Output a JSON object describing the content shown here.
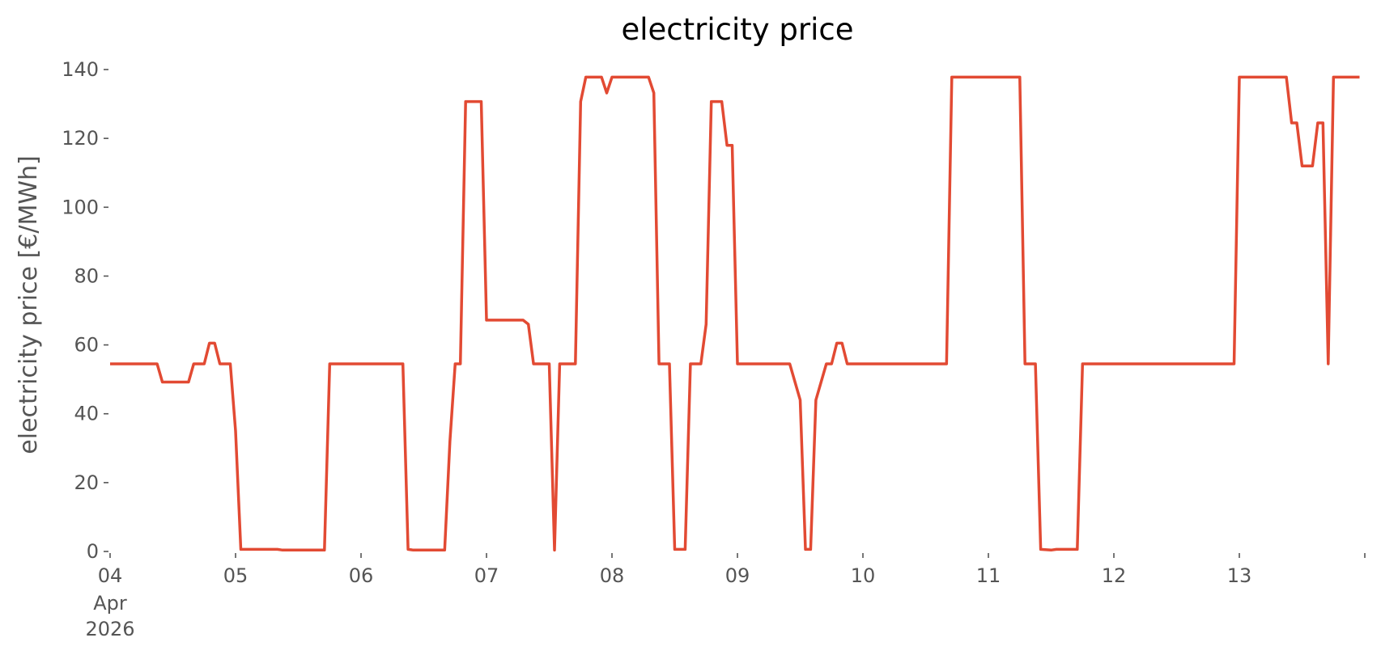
{
  "chart_data": {
    "type": "line",
    "title": "electricity price",
    "xlabel": "",
    "ylabel": "electricity price [€/MWh]",
    "ylim": [
      0,
      140
    ],
    "xlim": [
      "2026-04-04T00:00",
      "2026-04-13T23:00"
    ],
    "yticks": [
      0,
      20,
      40,
      60,
      80,
      100,
      120,
      140
    ],
    "xticks": [
      {
        "value": "2026-04-04",
        "label": "04",
        "sublabels": [
          "Apr",
          "2026"
        ]
      },
      {
        "value": "2026-04-05",
        "label": "05"
      },
      {
        "value": "2026-04-06",
        "label": "06"
      },
      {
        "value": "2026-04-07",
        "label": "07"
      },
      {
        "value": "2026-04-08",
        "label": "08"
      },
      {
        "value": "2026-04-09",
        "label": "09"
      },
      {
        "value": "2026-04-10",
        "label": "10"
      },
      {
        "value": "2026-04-11",
        "label": "11"
      },
      {
        "value": "2026-04-12",
        "label": "12"
      },
      {
        "value": "2026-04-13",
        "label": "13"
      },
      {
        "value": "2026-04-14",
        "label": ""
      }
    ],
    "grid": false,
    "legend": "none",
    "color": "#e24a33",
    "series": [
      {
        "points": [
          [
            "2026-04-04T00:00",
            54.5
          ],
          [
            "2026-04-04T09:00",
            54.5
          ],
          [
            "2026-04-04T10:00",
            49.2
          ],
          [
            "2026-04-04T15:00",
            49.2
          ],
          [
            "2026-04-04T16:00",
            54.5
          ],
          [
            "2026-04-04T18:00",
            54.5
          ],
          [
            "2026-04-04T19:00",
            60.5
          ],
          [
            "2026-04-04T20:00",
            60.5
          ],
          [
            "2026-04-04T21:00",
            54.5
          ],
          [
            "2026-04-04T23:00",
            54.5
          ],
          [
            "2026-04-05T00:00",
            35
          ],
          [
            "2026-04-05T01:00",
            0.6
          ],
          [
            "2026-04-05T08:00",
            0.6
          ],
          [
            "2026-04-05T09:00",
            0.4
          ],
          [
            "2026-04-05T17:00",
            0.4
          ],
          [
            "2026-04-05T18:00",
            54.5
          ],
          [
            "2026-04-06T08:00",
            54.5
          ],
          [
            "2026-04-06T09:00",
            0.6
          ],
          [
            "2026-04-06T10:00",
            0.4
          ],
          [
            "2026-04-06T16:00",
            0.4
          ],
          [
            "2026-04-06T17:00",
            32
          ],
          [
            "2026-04-06T18:00",
            54.5
          ],
          [
            "2026-04-06T19:00",
            54.5
          ],
          [
            "2026-04-06T20:00",
            130.7
          ],
          [
            "2026-04-06T23:00",
            130.7
          ],
          [
            "2026-04-07T00:00",
            67.2
          ],
          [
            "2026-04-07T07:00",
            67.2
          ],
          [
            "2026-04-07T08:00",
            66
          ],
          [
            "2026-04-07T09:00",
            54.5
          ],
          [
            "2026-04-07T12:00",
            54.5
          ],
          [
            "2026-04-07T13:00",
            0.4
          ],
          [
            "2026-04-07T14:00",
            54.5
          ],
          [
            "2026-04-07T17:00",
            54.5
          ],
          [
            "2026-04-07T18:00",
            130.7
          ],
          [
            "2026-04-07T19:00",
            137.8
          ],
          [
            "2026-04-07T22:00",
            137.8
          ],
          [
            "2026-04-07T23:00",
            133.2
          ],
          [
            "2026-04-08T00:00",
            137.8
          ],
          [
            "2026-04-08T07:00",
            137.8
          ],
          [
            "2026-04-08T08:00",
            133.2
          ],
          [
            "2026-04-08T09:00",
            54.5
          ],
          [
            "2026-04-08T11:00",
            54.5
          ],
          [
            "2026-04-08T12:00",
            0.6
          ],
          [
            "2026-04-08T14:00",
            0.6
          ],
          [
            "2026-04-08T15:00",
            54.5
          ],
          [
            "2026-04-08T17:00",
            54.5
          ],
          [
            "2026-04-08T18:00",
            66
          ],
          [
            "2026-04-08T19:00",
            130.7
          ],
          [
            "2026-04-08T21:00",
            130.7
          ],
          [
            "2026-04-08T22:00",
            118
          ],
          [
            "2026-04-08T23:00",
            118
          ],
          [
            "2026-04-09T00:00",
            54.5
          ],
          [
            "2026-04-09T10:00",
            54.5
          ],
          [
            "2026-04-09T12:00",
            44
          ],
          [
            "2026-04-09T13:00",
            0.6
          ],
          [
            "2026-04-09T14:00",
            0.6
          ],
          [
            "2026-04-09T15:00",
            44
          ],
          [
            "2026-04-09T17:00",
            54.5
          ],
          [
            "2026-04-09T18:00",
            54.5
          ],
          [
            "2026-04-09T19:00",
            60.5
          ],
          [
            "2026-04-09T20:00",
            60.5
          ],
          [
            "2026-04-09T21:00",
            54.5
          ],
          [
            "2026-04-10T16:00",
            54.5
          ],
          [
            "2026-04-10T17:00",
            137.8
          ],
          [
            "2026-04-11T06:00",
            137.8
          ],
          [
            "2026-04-11T07:00",
            54.5
          ],
          [
            "2026-04-11T09:00",
            54.5
          ],
          [
            "2026-04-11T10:00",
            0.6
          ],
          [
            "2026-04-11T12:00",
            0.4
          ],
          [
            "2026-04-11T13:00",
            0.6
          ],
          [
            "2026-04-11T17:00",
            0.6
          ],
          [
            "2026-04-11T18:00",
            54.5
          ],
          [
            "2026-04-12T23:00",
            54.5
          ],
          [
            "2026-04-13T00:00",
            137.8
          ],
          [
            "2026-04-13T09:00",
            137.8
          ],
          [
            "2026-04-13T10:00",
            124.5
          ],
          [
            "2026-04-13T11:00",
            124.5
          ],
          [
            "2026-04-13T12:00",
            112
          ],
          [
            "2026-04-13T14:00",
            112
          ],
          [
            "2026-04-13T15:00",
            124.5
          ],
          [
            "2026-04-13T16:00",
            124.5
          ],
          [
            "2026-04-13T17:00",
            54.5
          ],
          [
            "2026-04-13T18:00",
            137.8
          ],
          [
            "2026-04-13T23:00",
            137.8
          ]
        ]
      }
    ]
  }
}
